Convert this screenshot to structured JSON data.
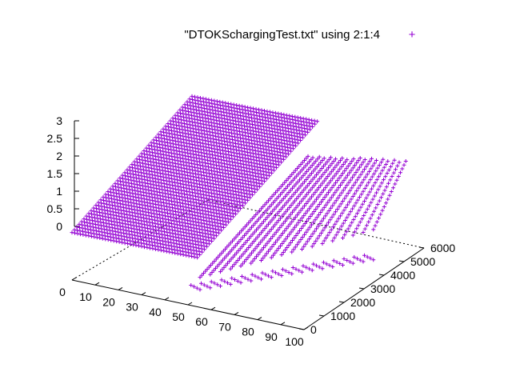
{
  "chart_data": {
    "type": "scatter",
    "style": "3d",
    "legend": {
      "label": "\"DTOKSchargingTest.txt\" using 2:1:4",
      "position": "top-right",
      "marker": "+",
      "color": "#9400d3"
    },
    "axes": {
      "x": {
        "range": [
          0,
          100
        ],
        "ticks": [
          "0",
          "10",
          "20",
          "30",
          "40",
          "50",
          "60",
          "70",
          "80",
          "90",
          "100"
        ]
      },
      "y": {
        "range": [
          0,
          6000
        ],
        "ticks": [
          "0",
          "1000",
          "2000",
          "3000",
          "4000",
          "5000",
          "6000"
        ]
      },
      "z": {
        "range": [
          0,
          3
        ],
        "ticks": [
          "0",
          "0.5",
          "1",
          "1.5",
          "2",
          "2.5",
          "3"
        ]
      }
    },
    "grid": false,
    "series": [
      {
        "color": "#9400d3",
        "description_points": [
          {
            "x": 0,
            "y": 0,
            "z": 1.4
          },
          {
            "x": 0,
            "y": 6000,
            "z": 2.9
          },
          {
            "x": 100,
            "y": 6000,
            "z": 2.9
          },
          {
            "x": 100,
            "y": 0,
            "z": 1.4
          }
        ]
      }
    ]
  }
}
